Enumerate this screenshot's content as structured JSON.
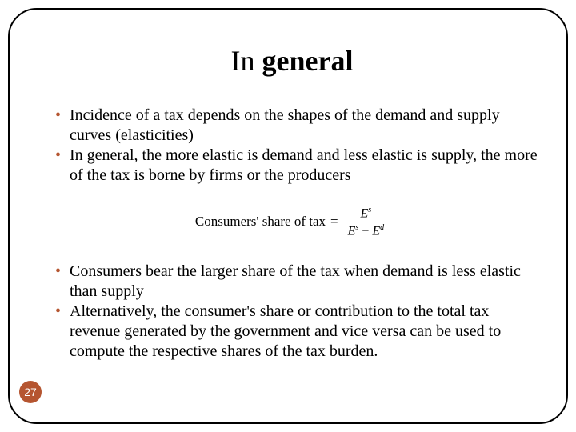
{
  "slide": {
    "title_prefix": "In ",
    "title_bold": "general",
    "bullets_top": [
      "Incidence of a tax depends on the shapes of the demand and supply curves (elasticities)",
      "In general, the more elastic is demand and less elastic is supply, the more of the tax is borne by firms or the producers"
    ],
    "equation": {
      "lhs": "Consumers' share of  tax",
      "eq": "=",
      "num_base": "E",
      "num_sup": "s",
      "den_left_base": "E",
      "den_left_sup": "s",
      "minus": "−",
      "den_right_base": "E",
      "den_right_sup": "d"
    },
    "bullets_bottom": [
      "Consumers bear the larger share of the tax when demand is less elastic than supply",
      " Alternatively, the consumer's  share or contribution to the total tax revenue generated by the government and vice versa can be used to compute the respective shares of the tax burden."
    ],
    "page_number": "27"
  },
  "colors": {
    "accent": "#b55530",
    "text": "#000000",
    "background": "#ffffff",
    "badge_bg": "#b55530",
    "badge_fg": "#ffffff",
    "border": "#000000"
  }
}
